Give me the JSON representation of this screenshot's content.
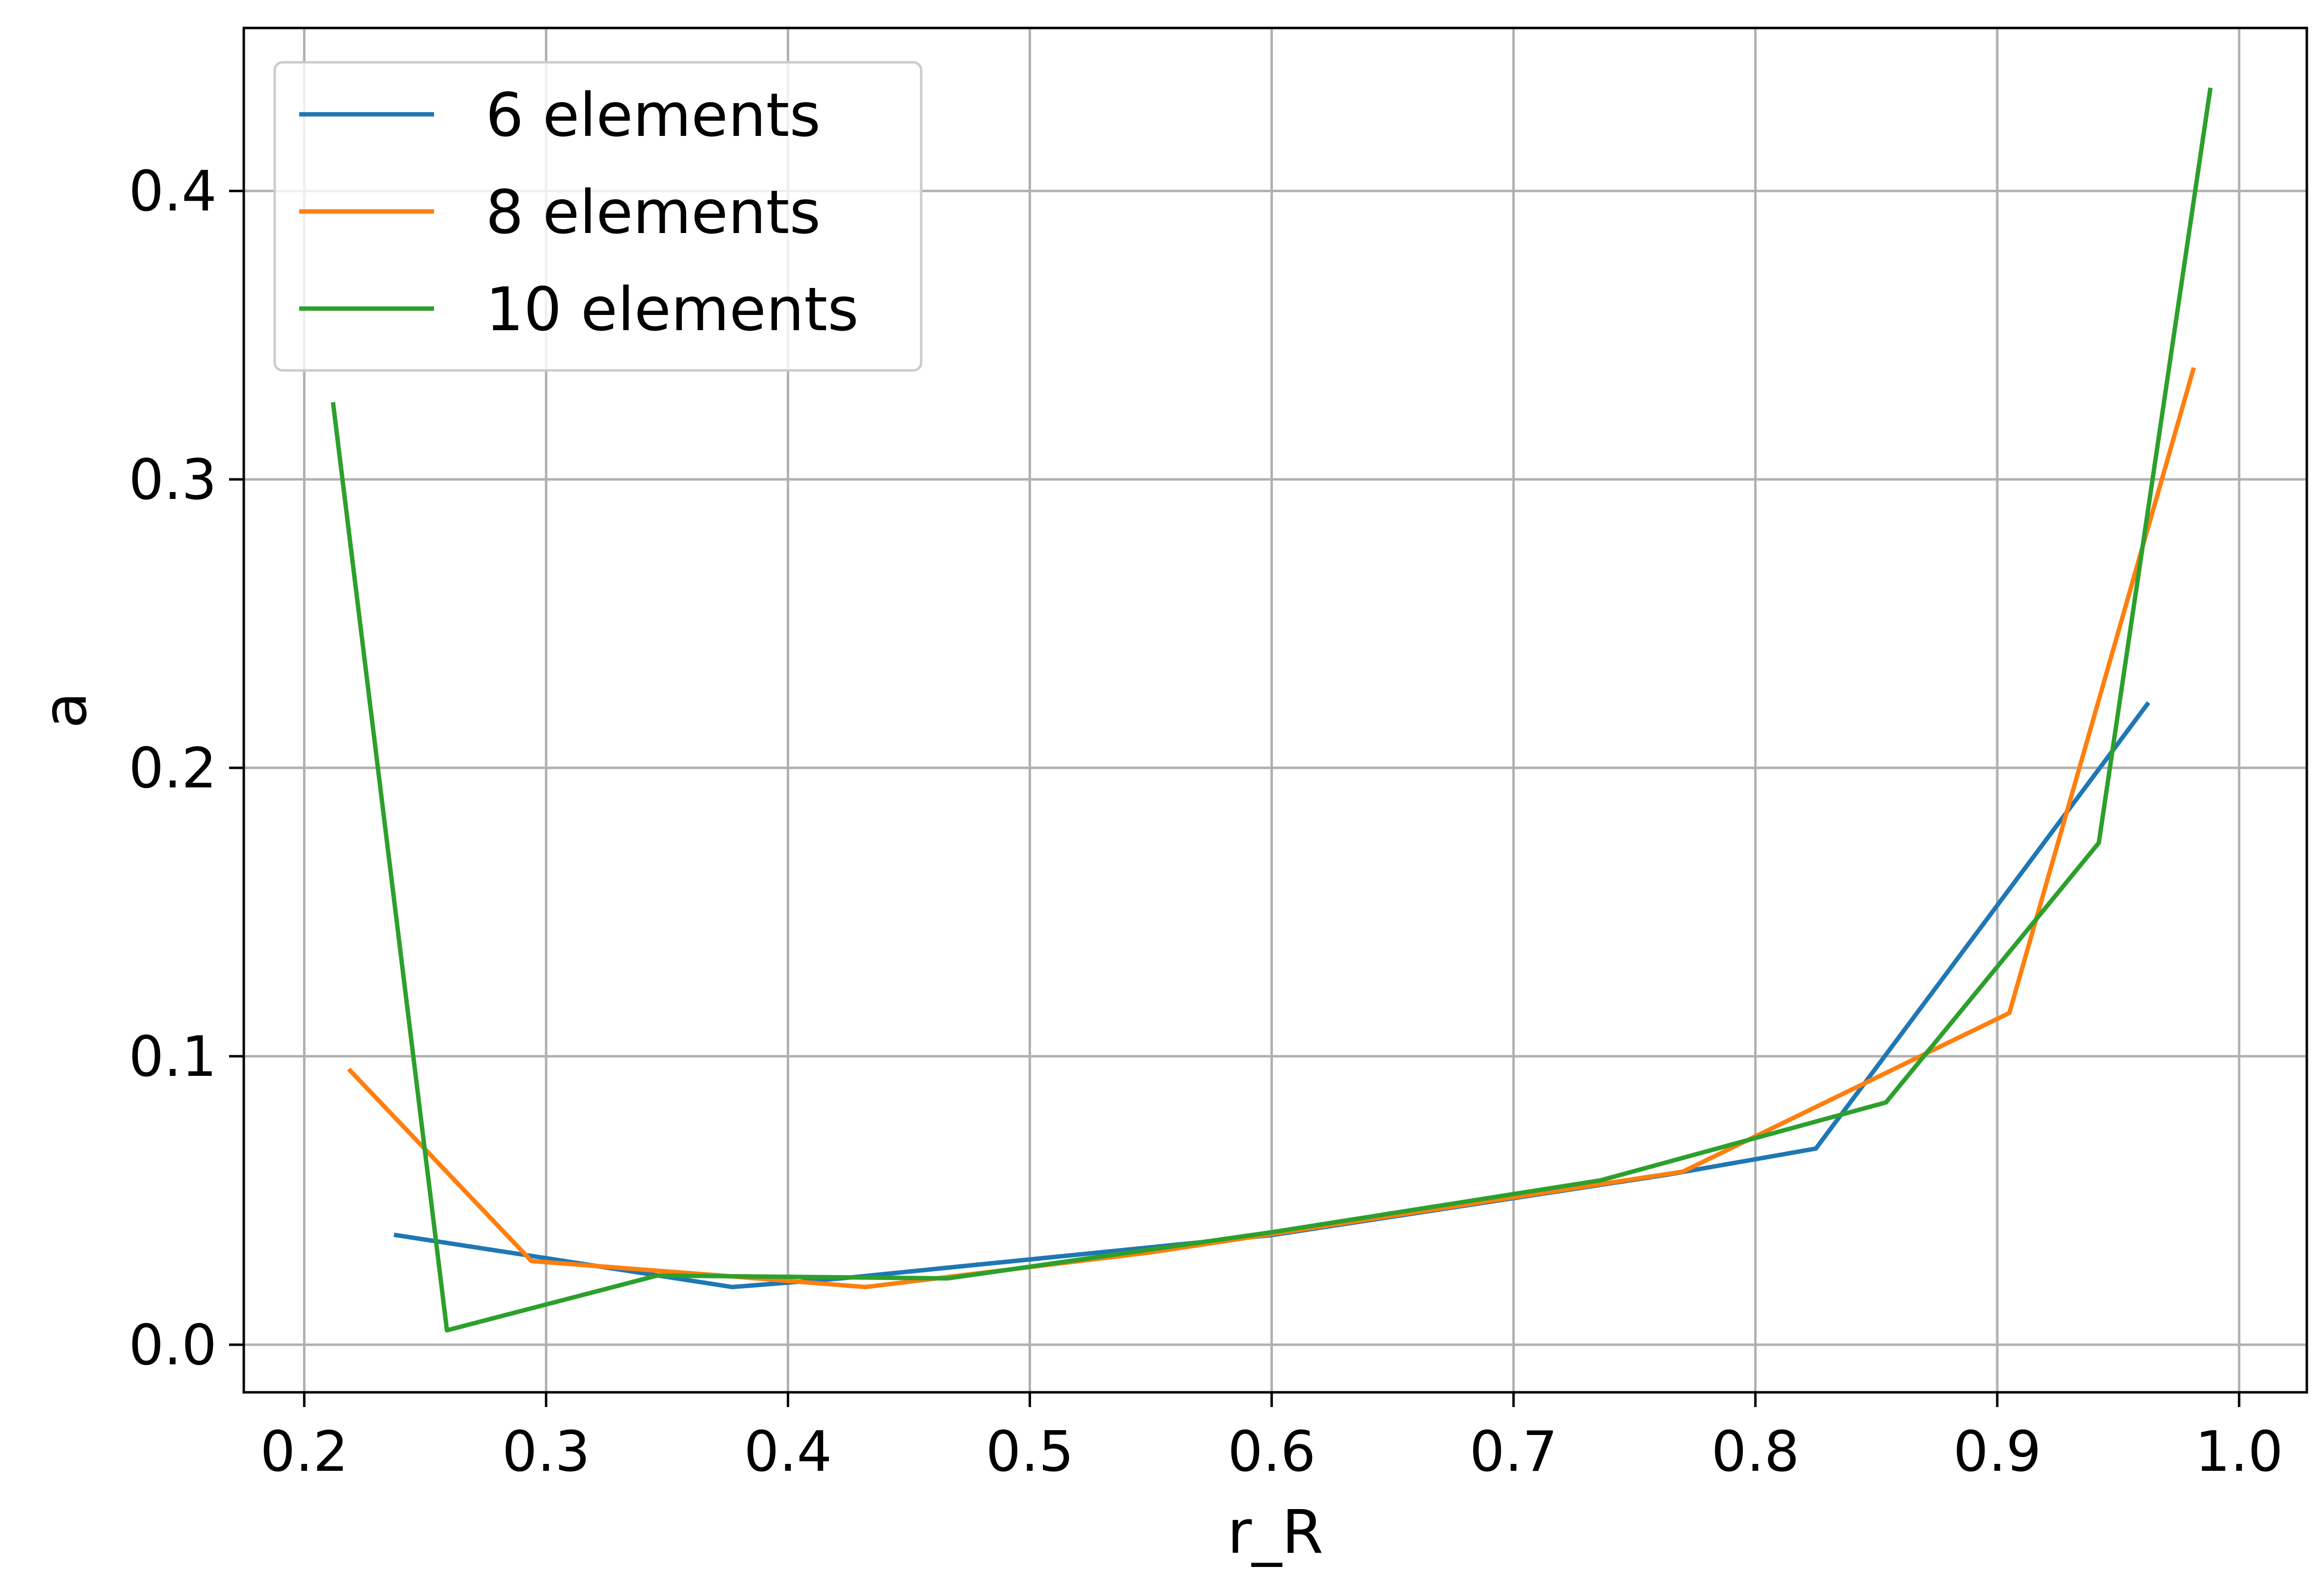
{
  "chart_data": {
    "type": "line",
    "xlabel": "r_R",
    "ylabel": "a",
    "xlim": [
      0.175,
      1.028
    ],
    "ylim": [
      -0.0165,
      0.4565
    ],
    "xticks": [
      0.2,
      0.3,
      0.4,
      0.5,
      0.6,
      0.7,
      0.8,
      0.9,
      1.0
    ],
    "xtick_labels": [
      "0.2",
      "0.3",
      "0.4",
      "0.5",
      "0.6",
      "0.7",
      "0.8",
      "0.9",
      "1.0"
    ],
    "yticks": [
      0.0,
      0.1,
      0.2,
      0.3,
      0.4
    ],
    "ytick_labels": [
      "0.0",
      "0.1",
      "0.2",
      "0.3",
      "0.4"
    ],
    "grid": true,
    "legend_position": "top-left",
    "series": [
      {
        "name": "6 elements",
        "color": "#1f77b4",
        "x": [
          0.238,
          0.3,
          0.377,
          0.422,
          0.6,
          0.764,
          0.825,
          0.962
        ],
        "y": [
          0.038,
          0.03,
          0.02,
          0.023,
          0.038,
          0.059,
          0.068,
          0.222
        ]
      },
      {
        "name": "8 elements",
        "color": "#ff7f0e",
        "x": [
          0.219,
          0.294,
          0.372,
          0.432,
          0.55,
          0.77,
          0.905,
          0.981
        ],
        "y": [
          0.095,
          0.029,
          0.024,
          0.02,
          0.032,
          0.06,
          0.115,
          0.338
        ]
      },
      {
        "name": "10 elements",
        "color": "#2ca02c",
        "x": [
          0.212,
          0.259,
          0.346,
          0.466,
          0.6,
          0.736,
          0.854,
          0.942,
          0.988
        ],
        "y": [
          0.326,
          0.005,
          0.024,
          0.023,
          0.039,
          0.057,
          0.084,
          0.174,
          0.435
        ]
      }
    ]
  }
}
